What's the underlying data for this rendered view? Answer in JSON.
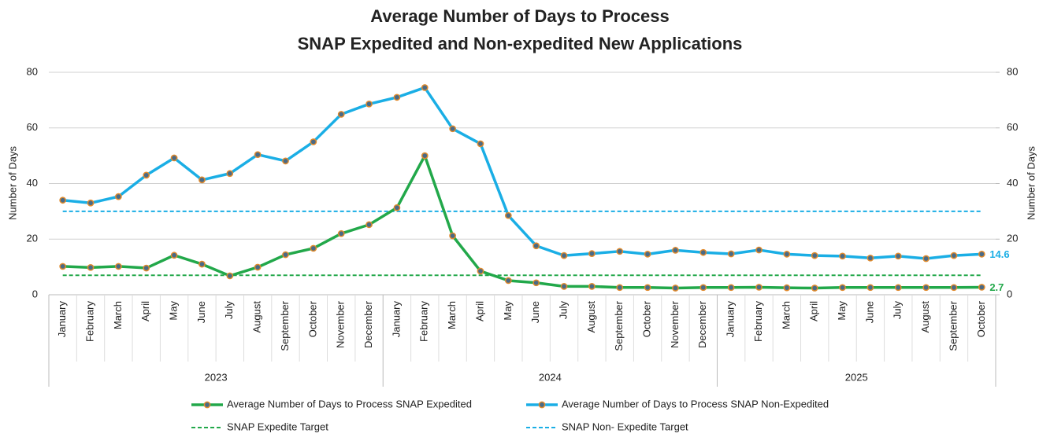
{
  "chart_data": {
    "type": "line",
    "title": [
      "Average Number of Days to Process",
      "SNAP Expedited and Non-expedited New Applications"
    ],
    "y_label": "Number of Days",
    "y2_label": "Number of Days",
    "category_groups": [
      {
        "label": "2023",
        "categories": [
          "January",
          "February",
          "March",
          "April",
          "May",
          "June",
          "July",
          "August",
          "September",
          "October",
          "November",
          "December"
        ]
      },
      {
        "label": "2024",
        "categories": [
          "January",
          "February",
          "March",
          "April",
          "May",
          "June",
          "July",
          "August",
          "September",
          "October",
          "November",
          "December"
        ]
      },
      {
        "label": "2025",
        "categories": [
          "January",
          "February",
          "March",
          "April",
          "May",
          "June",
          "July",
          "August",
          "September",
          "October"
        ]
      }
    ],
    "series": [
      {
        "name": "Average Number of Days to Process SNAP Expedited",
        "color": "#22a84a",
        "values": [
          10.2,
          9.8,
          10.2,
          9.6,
          14.2,
          11.0,
          6.8,
          9.9,
          14.4,
          16.7,
          22.0,
          25.2,
          31.3,
          50.0,
          21.2,
          8.5,
          5.1,
          4.3,
          3.0,
          3.0,
          2.6,
          2.6,
          2.4,
          2.6,
          2.6,
          2.7,
          2.5,
          2.4,
          2.6,
          2.6,
          2.6,
          2.6,
          2.6,
          2.7
        ]
      },
      {
        "name": "Average Number of Days to Process SNAP Non-Expedited",
        "color": "#1aaee5",
        "values": [
          34.0,
          33.0,
          35.3,
          43.0,
          49.2,
          41.3,
          43.6,
          50.4,
          48.1,
          55.0,
          64.9,
          68.6,
          71.0,
          74.5,
          59.7,
          54.3,
          28.5,
          17.6,
          14.1,
          14.8,
          15.6,
          14.6,
          16.0,
          15.2,
          14.7,
          16.1,
          14.6,
          14.1,
          13.9,
          13.2,
          13.9,
          13.0,
          14.1,
          14.6
        ]
      }
    ],
    "targets": [
      {
        "name": "SNAP Expedite Target",
        "color": "#22a84a",
        "value": 7
      },
      {
        "name": "SNAP Non- Expedite Target",
        "color": "#1aaee5",
        "value": 30
      }
    ],
    "marker_color": "#e08a2c",
    "label_last": true,
    "ylim": [
      0,
      80
    ],
    "yticks": [
      0,
      20,
      40,
      60,
      80
    ],
    "y2lim": [
      0,
      80
    ],
    "y2ticks": [
      0,
      20,
      40,
      60,
      80
    ],
    "grid": true
  }
}
